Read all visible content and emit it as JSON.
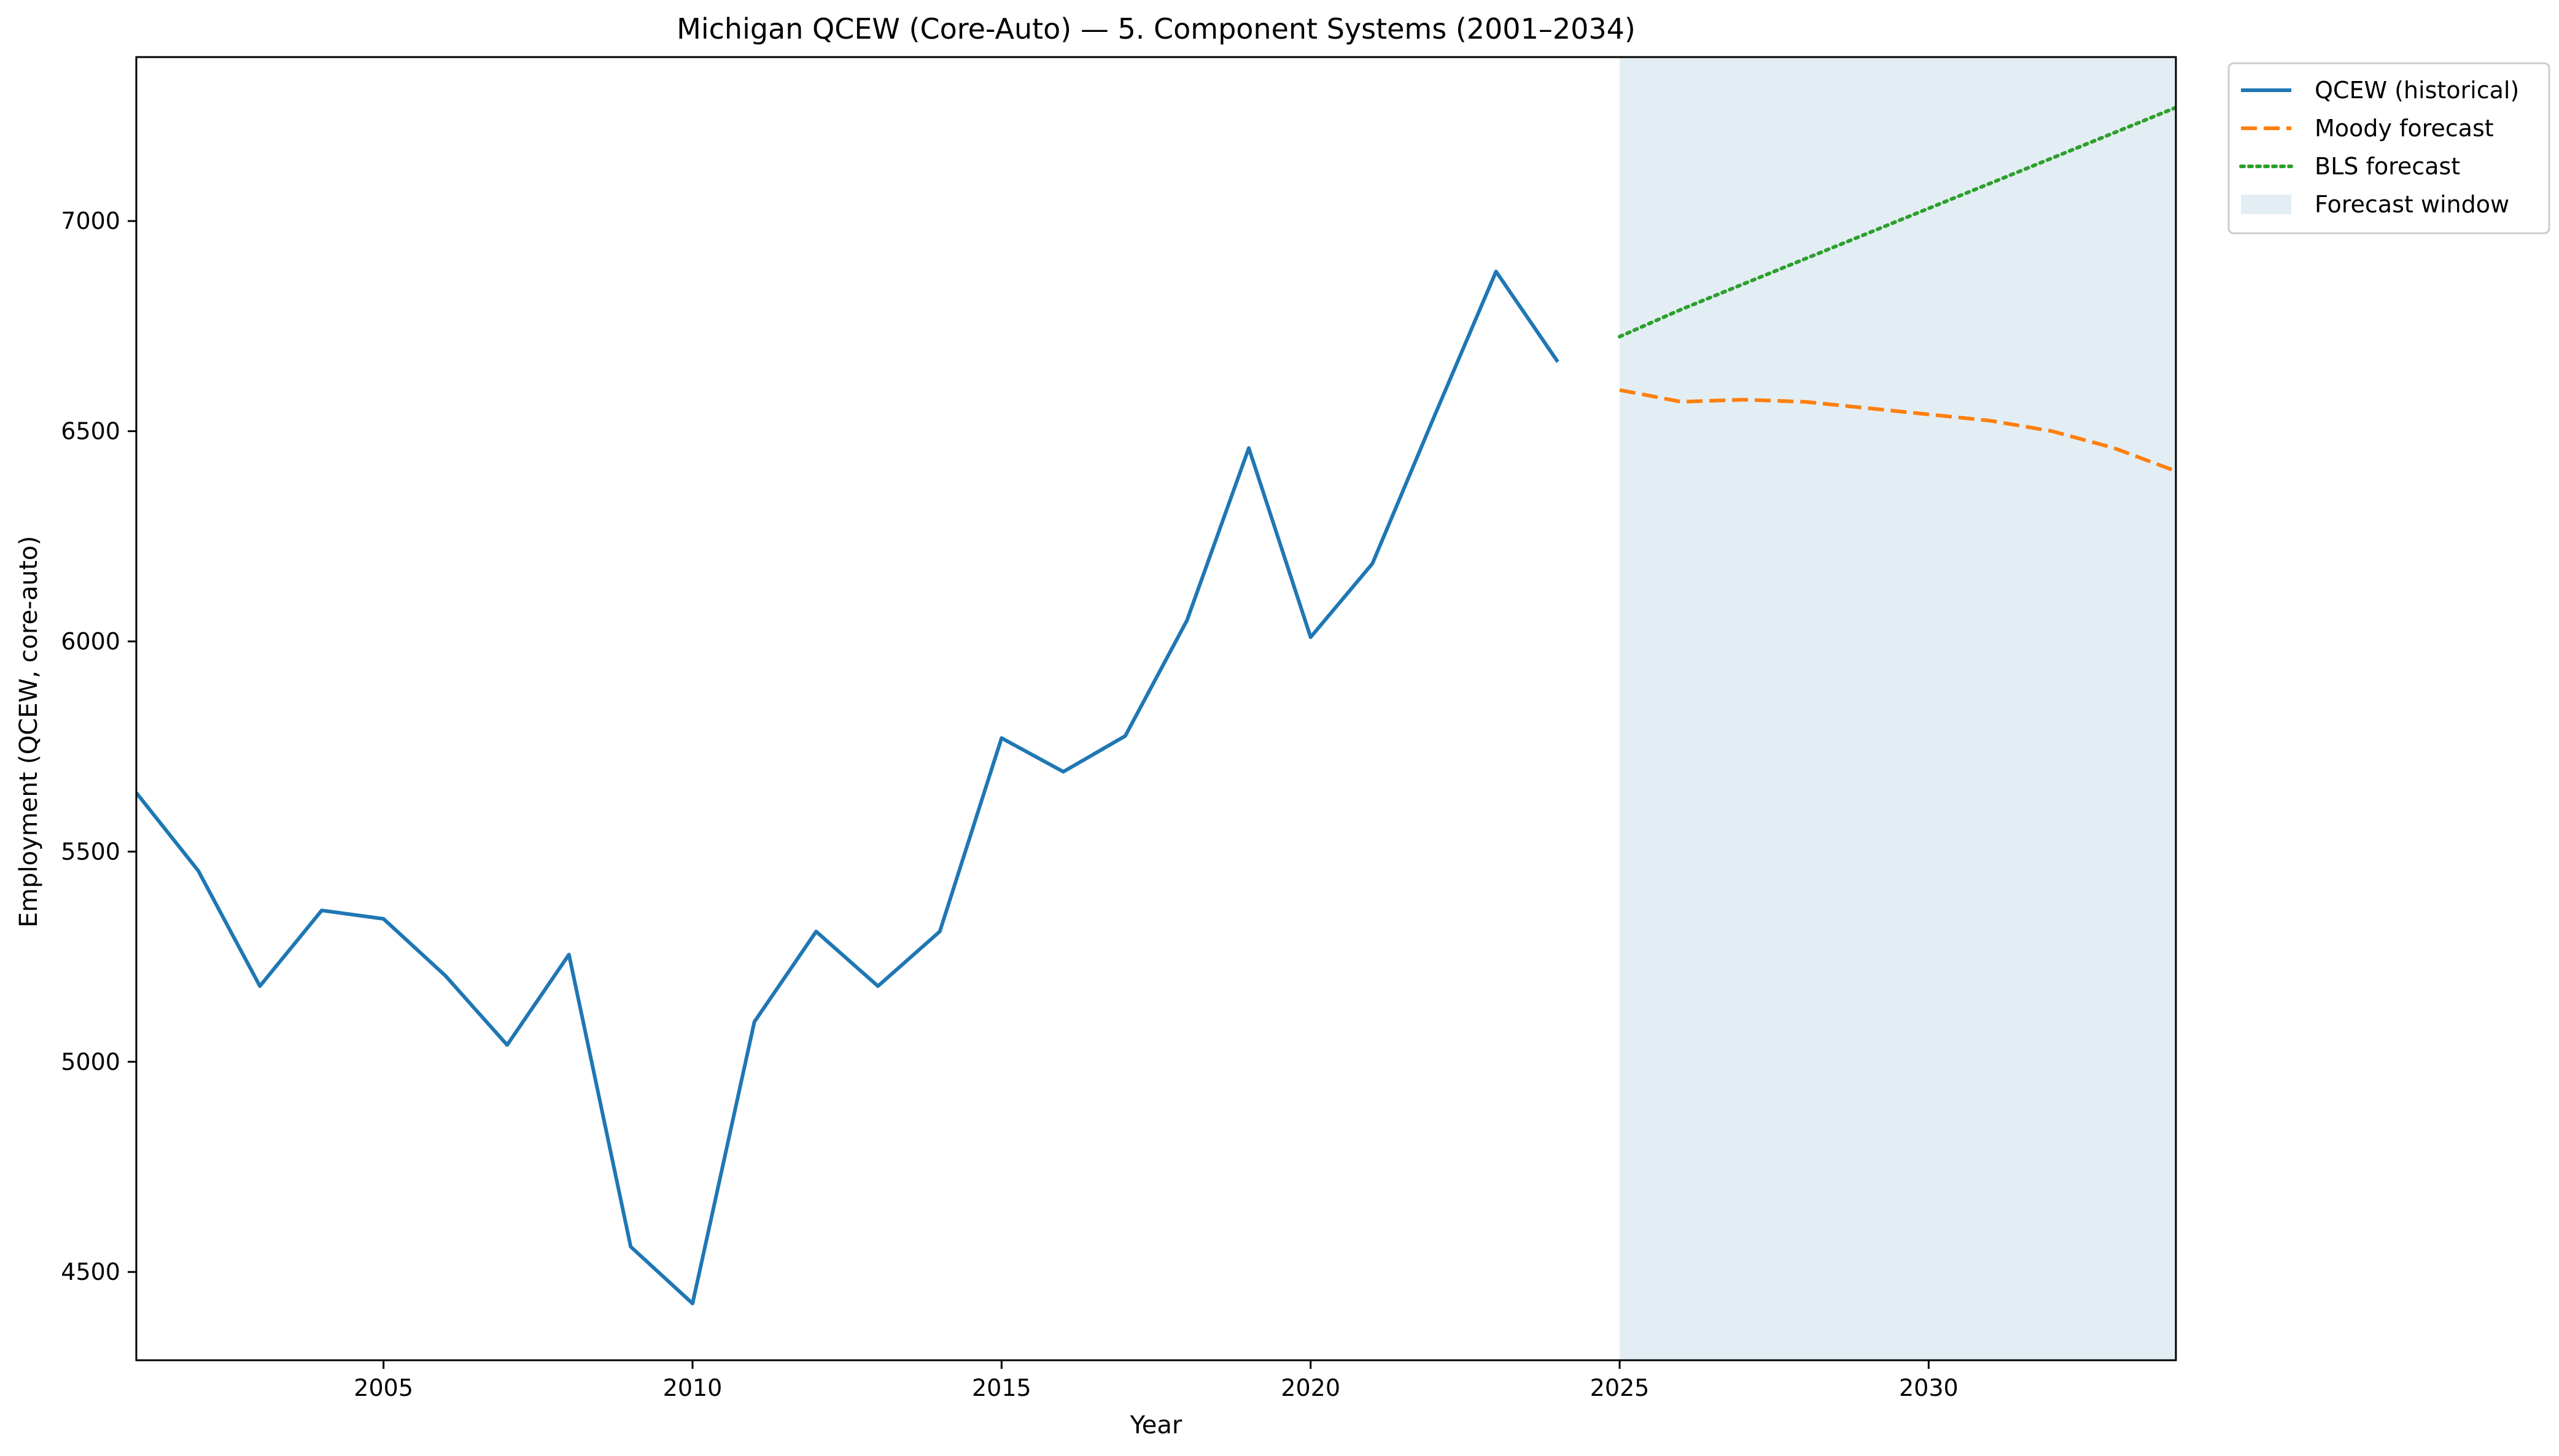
{
  "chart_data": {
    "type": "line",
    "title": "Michigan QCEW (Core-Auto) — 5. Component Systems (2001–2034)",
    "xlabel": "Year",
    "ylabel": "Employment (QCEW, core-auto)",
    "xlim": [
      2001,
      2034
    ],
    "ylim": [
      4290,
      7390
    ],
    "xticks": [
      2005,
      2010,
      2015,
      2020,
      2025,
      2030
    ],
    "yticks": [
      4500,
      5000,
      5500,
      6000,
      6500,
      7000
    ],
    "grid": false,
    "legend_position": "outside-top-right",
    "forecast_window": {
      "name": "Forecast window",
      "start": 2025,
      "end": 2034,
      "color": "#e3eef4"
    },
    "series": [
      {
        "name": "QCEW (historical)",
        "style": "solid",
        "color": "#1f77b4",
        "x": [
          2001,
          2002,
          2003,
          2004,
          2005,
          2006,
          2007,
          2008,
          2009,
          2010,
          2011,
          2012,
          2013,
          2014,
          2015,
          2016,
          2017,
          2018,
          2019,
          2020,
          2021,
          2022,
          2023,
          2024
        ],
        "y": [
          5640,
          5455,
          5180,
          5360,
          5340,
          5205,
          5040,
          5255,
          4560,
          4425,
          5095,
          5310,
          5180,
          5310,
          5770,
          5690,
          5775,
          6050,
          6460,
          6010,
          6185,
          6535,
          6880,
          6665
        ]
      },
      {
        "name": "Moody forecast",
        "style": "dashed",
        "color": "#ff7f0e",
        "x": [
          2025,
          2026,
          2027,
          2028,
          2029,
          2030,
          2031,
          2032,
          2033,
          2034
        ],
        "y": [
          6598,
          6570,
          6575,
          6570,
          6555,
          6540,
          6525,
          6500,
          6460,
          6405
        ]
      },
      {
        "name": "BLS forecast",
        "style": "dotted",
        "color": "#2ca02c",
        "x": [
          2025,
          2026,
          2027,
          2028,
          2029,
          2030,
          2031,
          2032,
          2033,
          2034
        ],
        "y": [
          6725,
          6790,
          6850,
          6910,
          6970,
          7030,
          7090,
          7150,
          7210,
          7270
        ]
      }
    ]
  }
}
